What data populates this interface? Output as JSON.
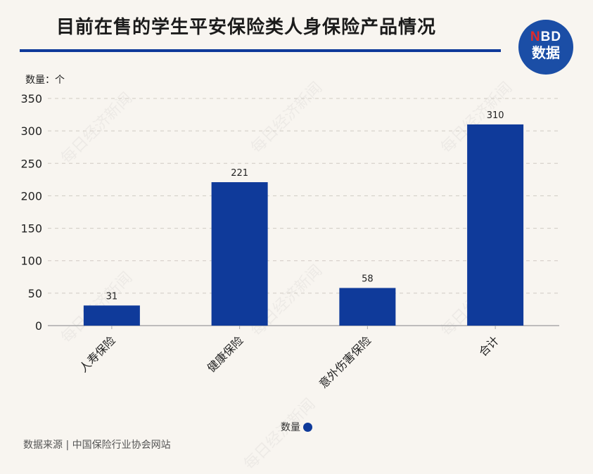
{
  "header": {
    "title": "目前在售的学生平安保险类人身保险产品情况"
  },
  "logo": {
    "line1_n": "N",
    "line1_rest": "BD",
    "line2": "数据"
  },
  "watermark_text": "每日经济新闻",
  "footer": {
    "source": "数据来源 | 中国保险行业协会网站"
  },
  "colors": {
    "bar": "#0f3a9a",
    "accent_rule": "#0f3a9a",
    "background": "#f8f5f0"
  },
  "chart_data": {
    "type": "bar",
    "title": "目前在售的学生平安保险类人身保险产品情况",
    "ylabel": "数量：个",
    "xlabel": "",
    "categories": [
      "人寿保险",
      "健康保险",
      "意外伤害保险",
      "合计"
    ],
    "series": [
      {
        "name": "数量",
        "values": [
          31,
          221,
          58,
          310
        ]
      }
    ],
    "data_labels": [
      "31",
      "221",
      "58",
      "310"
    ],
    "ylim": [
      0,
      350
    ],
    "yticks": [
      0,
      50,
      100,
      150,
      200,
      250,
      300,
      350
    ],
    "grid": true,
    "legend": "bottom-center"
  }
}
